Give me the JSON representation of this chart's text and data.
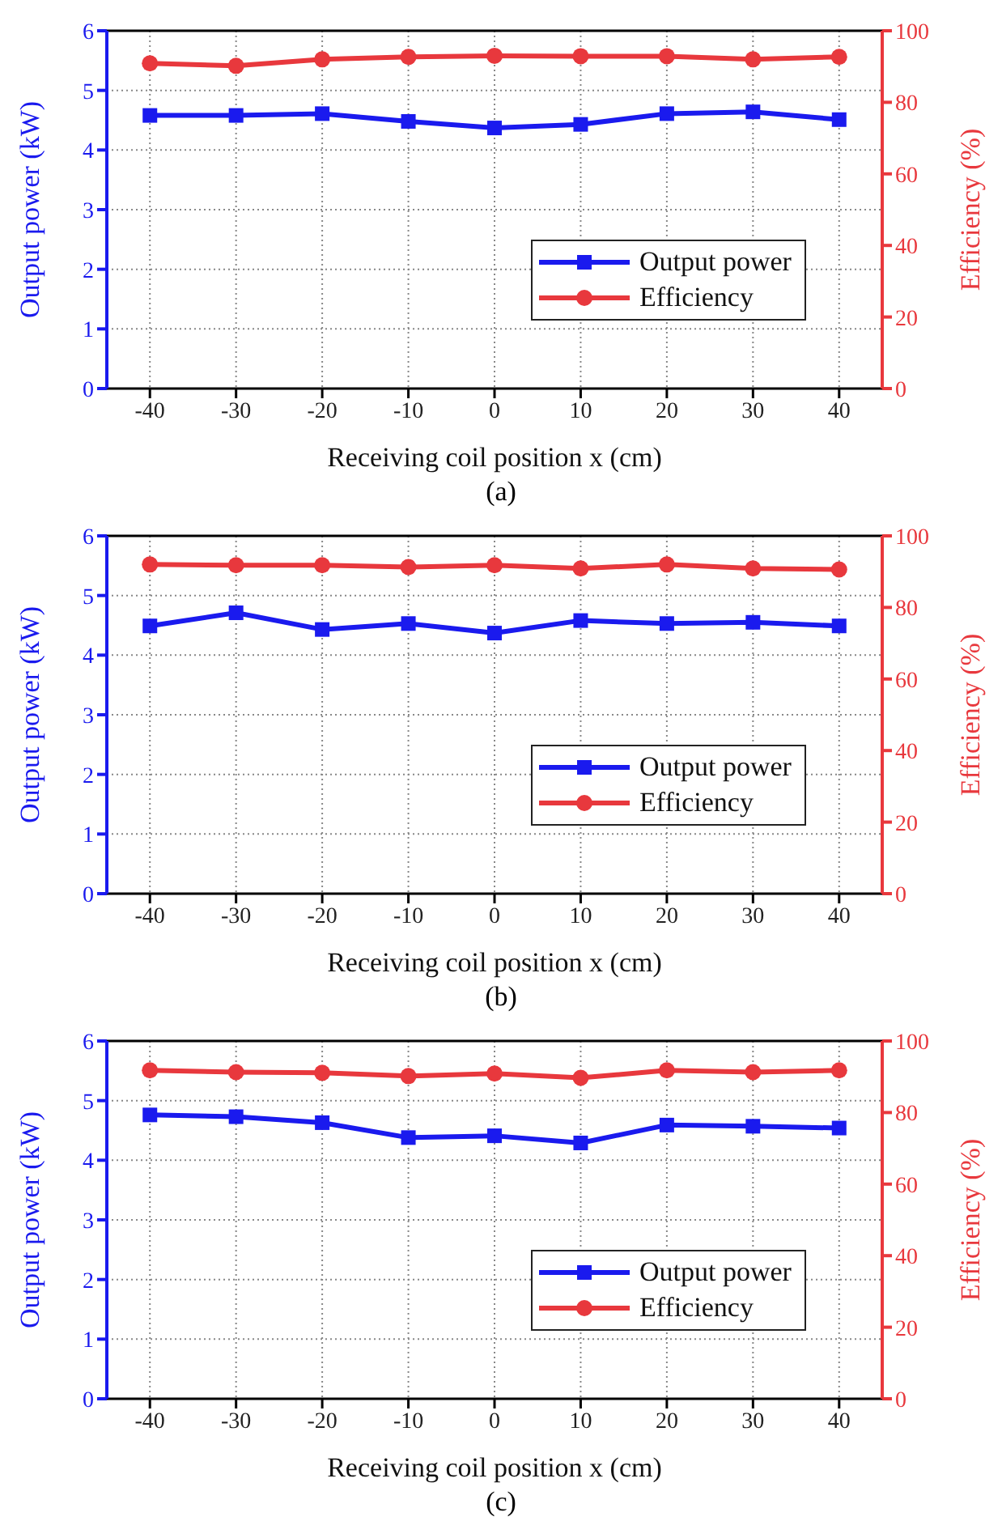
{
  "chart_data": [
    {
      "type": "line",
      "x": [
        -40,
        -30,
        -20,
        -10,
        0,
        10,
        20,
        30,
        40
      ],
      "xlabel": "Receiving coil position x (cm)",
      "ylabel": "Output power (kW)",
      "y2label": "Efficiency (%)",
      "xlim": [
        -45,
        45
      ],
      "xticks": [
        -40,
        -30,
        -20,
        -10,
        0,
        10,
        20,
        30,
        40
      ],
      "ylim": [
        0,
        6
      ],
      "yticks": [
        0,
        1,
        2,
        3,
        4,
        5,
        6
      ],
      "y2lim": [
        0,
        100
      ],
      "y2ticks": [
        0,
        20,
        40,
        60,
        80,
        100
      ],
      "grid": true,
      "legend": "bottom right",
      "line_style": "solid",
      "annotations": [
        "(a)"
      ],
      "series": [
        {
          "name": "Output power",
          "color": "#1a1aee",
          "marker": "square",
          "values": [
            4.58,
            4.58,
            4.61,
            4.48,
            4.37,
            4.43,
            4.61,
            4.64,
            4.51
          ]
        },
        {
          "name": "Efficiency",
          "color": "#e8383d",
          "marker": "circle",
          "axis": "y2",
          "values": [
            90.9,
            90.2,
            92.0,
            92.7,
            93.0,
            92.9,
            92.9,
            92.0,
            92.7
          ]
        }
      ]
    },
    {
      "type": "line",
      "x": [
        -40,
        -30,
        -20,
        -10,
        0,
        10,
        20,
        30,
        40
      ],
      "xlabel": "Receiving coil position x (cm)",
      "ylabel": "Output power (kW)",
      "y2label": "Efficiency (%)",
      "xlim": [
        -45,
        45
      ],
      "xticks": [
        -40,
        -30,
        -20,
        -10,
        0,
        10,
        20,
        30,
        40
      ],
      "ylim": [
        0,
        6
      ],
      "yticks": [
        0,
        1,
        2,
        3,
        4,
        5,
        6
      ],
      "y2lim": [
        0,
        100
      ],
      "y2ticks": [
        0,
        20,
        40,
        60,
        80,
        100
      ],
      "grid": true,
      "legend": "bottom right",
      "line_style": "solid",
      "annotations": [
        "(b)"
      ],
      "series": [
        {
          "name": "Output power",
          "color": "#1a1aee",
          "marker": "square",
          "values": [
            4.49,
            4.71,
            4.43,
            4.53,
            4.37,
            4.58,
            4.53,
            4.55,
            4.49
          ]
        },
        {
          "name": "Efficiency",
          "color": "#e8383d",
          "marker": "circle",
          "axis": "y2",
          "values": [
            92.0,
            91.8,
            91.8,
            91.3,
            91.8,
            90.9,
            92.0,
            90.9,
            90.6
          ]
        }
      ]
    },
    {
      "type": "line",
      "x": [
        -40,
        -30,
        -20,
        -10,
        0,
        10,
        20,
        30,
        40
      ],
      "xlabel": "Receiving coil position x (cm)",
      "ylabel": "Output power (kW)",
      "y2label": "Efficiency (%)",
      "xlim": [
        -45,
        45
      ],
      "xticks": [
        -40,
        -30,
        -20,
        -10,
        0,
        10,
        20,
        30,
        40
      ],
      "ylim": [
        0,
        6
      ],
      "yticks": [
        0,
        1,
        2,
        3,
        4,
        5,
        6
      ],
      "y2lim": [
        0,
        100
      ],
      "y2ticks": [
        0,
        20,
        40,
        60,
        80,
        100
      ],
      "grid": true,
      "legend": "bottom right",
      "line_style": "solid",
      "annotations": [
        "(c)"
      ],
      "series": [
        {
          "name": "Output power",
          "color": "#1a1aee",
          "marker": "square",
          "values": [
            4.76,
            4.73,
            4.63,
            4.38,
            4.41,
            4.29,
            4.59,
            4.57,
            4.54
          ]
        },
        {
          "name": "Efficiency",
          "color": "#e8383d",
          "marker": "circle",
          "axis": "y2",
          "values": [
            91.8,
            91.3,
            91.1,
            90.2,
            90.9,
            89.7,
            91.8,
            91.3,
            91.8
          ]
        }
      ]
    }
  ]
}
